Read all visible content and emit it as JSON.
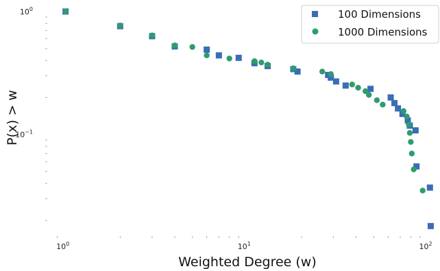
{
  "chart_data": {
    "type": "scatter",
    "title": "",
    "xlabel": "Weighted Degree (w)",
    "ylabel": "P(x) > w",
    "xscale": "log",
    "yscale": "log",
    "xlim": [
      0.8,
      110
    ],
    "ylim": [
      0.0155,
      1.12
    ],
    "grid": false,
    "legend_position": "top-right",
    "x_ticks": [
      {
        "value": 1,
        "label": "10",
        "exp": "0"
      },
      {
        "value": 10,
        "label": "10",
        "exp": "1"
      },
      {
        "value": 100,
        "label": "10",
        "exp": "2"
      }
    ],
    "y_ticks": [
      {
        "value": 0.1,
        "label": "10",
        "exp": "−1"
      },
      {
        "value": 1,
        "label": "10",
        "exp": "0"
      }
    ],
    "series": [
      {
        "name": "100 Dimensions",
        "marker": "square",
        "color": "#3a6db5",
        "points": [
          [
            1,
            1.0
          ],
          [
            2,
            0.76
          ],
          [
            3,
            0.63
          ],
          [
            4,
            0.52
          ],
          [
            6,
            0.49
          ],
          [
            7,
            0.44
          ],
          [
            9,
            0.42
          ],
          [
            11,
            0.38
          ],
          [
            13,
            0.36
          ],
          [
            18,
            0.34
          ],
          [
            19,
            0.325
          ],
          [
            28,
            0.305
          ],
          [
            29,
            0.29
          ],
          [
            31,
            0.27
          ],
          [
            35,
            0.25
          ],
          [
            48,
            0.235
          ],
          [
            62,
            0.2
          ],
          [
            65,
            0.18
          ],
          [
            68,
            0.163
          ],
          [
            72,
            0.147
          ],
          [
            77,
            0.13
          ],
          [
            79,
            0.118
          ],
          [
            85,
            0.108
          ],
          [
            86,
            0.055
          ],
          [
            102,
            0.037
          ],
          [
            103,
            0.018
          ]
        ]
      },
      {
        "name": "1000 Dimensions",
        "marker": "circle",
        "color": "#2e9c6e",
        "points": [
          [
            1,
            1.0
          ],
          [
            2,
            0.77
          ],
          [
            3,
            0.64
          ],
          [
            4,
            0.53
          ],
          [
            5,
            0.515
          ],
          [
            6,
            0.44
          ],
          [
            8,
            0.415
          ],
          [
            11,
            0.395
          ],
          [
            12,
            0.385
          ],
          [
            13,
            0.37
          ],
          [
            18,
            0.345
          ],
          [
            26,
            0.325
          ],
          [
            29,
            0.31
          ],
          [
            38,
            0.255
          ],
          [
            41,
            0.24
          ],
          [
            45,
            0.225
          ],
          [
            47,
            0.21
          ],
          [
            52,
            0.19
          ],
          [
            56,
            0.175
          ],
          [
            73,
            0.155
          ],
          [
            76,
            0.14
          ],
          [
            78,
            0.12
          ],
          [
            79,
            0.103
          ],
          [
            80,
            0.087
          ],
          [
            81,
            0.07
          ],
          [
            83,
            0.052
          ],
          [
            93,
            0.035
          ]
        ]
      }
    ]
  }
}
